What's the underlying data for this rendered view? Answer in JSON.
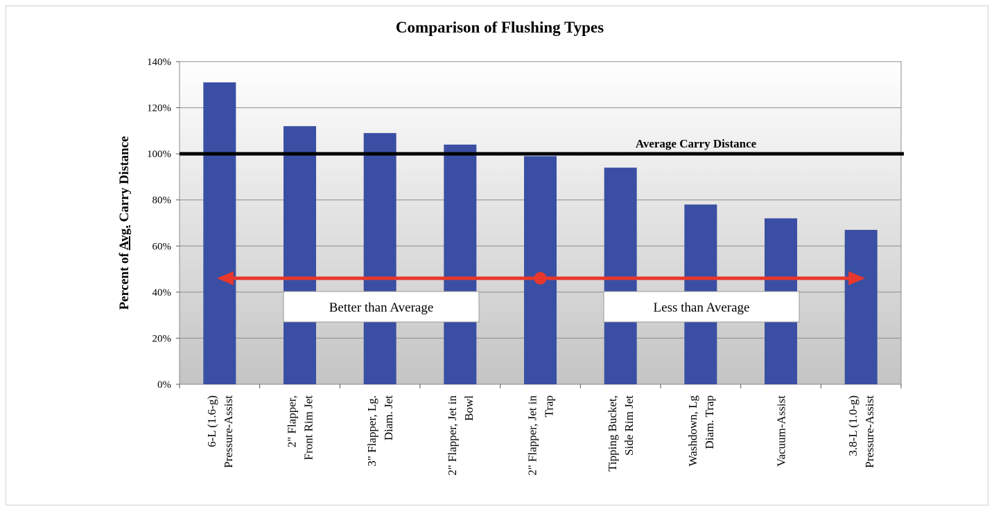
{
  "chart_data": {
    "type": "bar",
    "title": "Comparison of Flushing Types",
    "ylabel": "Percent of Avg. Carry Distance",
    "ylabel_parts": [
      "Percent of ",
      "Avg.",
      " Carry Distance"
    ],
    "xlabel": "",
    "ylim": [
      0,
      140
    ],
    "yticks": [
      0,
      20,
      40,
      60,
      80,
      100,
      120,
      140
    ],
    "ytick_labels": [
      "0%",
      "20%",
      "40%",
      "60%",
      "80%",
      "100%",
      "120%",
      "140%"
    ],
    "grid": true,
    "categories": [
      [
        "6-L (1.6-g)",
        "Pressure-Assist"
      ],
      [
        "2\" Flapper,",
        "Front Rim Jet"
      ],
      [
        "3\" Flapper, Lg.",
        "Diam. Jet"
      ],
      [
        "2\" Flapper, Jet in",
        "Bowl"
      ],
      [
        "2\" Flapper, Jet in",
        "Trap"
      ],
      [
        "Tipping Bucket,",
        "Side Rim Jet"
      ],
      [
        "Washdown, Lg",
        "Diam. Trap"
      ],
      [
        "Vacuum-Assist"
      ],
      [
        "3.8-L (1.0-g)",
        "Pressure-Assist"
      ]
    ],
    "values": [
      131,
      112,
      109,
      104,
      99,
      94,
      78,
      72,
      67
    ],
    "bar_color": "#3a4fa3",
    "reference_line": {
      "value": 100,
      "label": "Average Carry Distance",
      "color": "#000000"
    },
    "annotations": {
      "arrow_value": 46,
      "arrow_color": "#e8372c",
      "arrow_center_category_index": 4,
      "better_label": "Better than Average",
      "less_label": "Less than Average"
    }
  }
}
